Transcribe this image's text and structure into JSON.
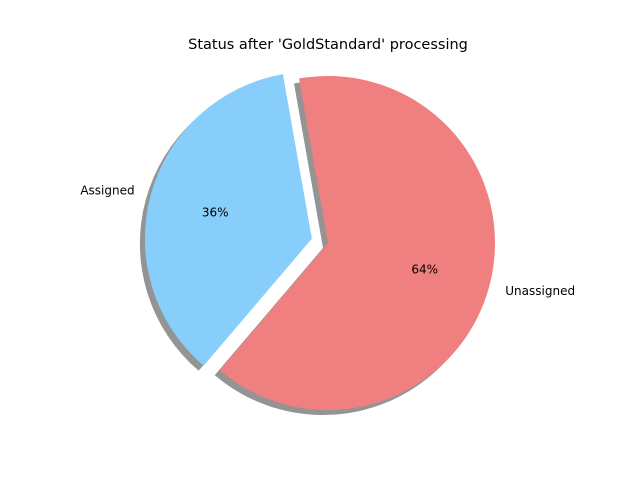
{
  "chart_data": {
    "type": "pie",
    "title": "Status after 'GoldStandard' processing",
    "labels": [
      "Assigned",
      "Unassigned"
    ],
    "values": [
      36,
      64
    ],
    "percent_labels": [
      "36%",
      "64%"
    ],
    "colors": [
      "#87CEFA",
      "#F08080"
    ],
    "explode": [
      0.1,
      0
    ],
    "shadow": true,
    "start_angle_deg": 100
  }
}
